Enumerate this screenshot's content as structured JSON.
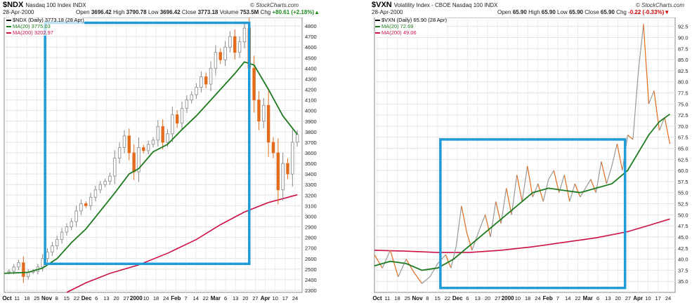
{
  "charts": [
    {
      "symbol": "$NDX",
      "name": "Nasdaq 100 Index",
      "exchange": "INDX",
      "date": "28-Apr-2000",
      "open_label": "Open",
      "open": "3696.42",
      "high_label": "High",
      "high": "3790.78",
      "low_label": "Low",
      "low": "3696.42",
      "close_label": "Close",
      "close": "3773.18",
      "volume_label": "Volume",
      "volume": "753.5M",
      "chg_label": "Chg",
      "chg": "+80.61 (+2.18%)",
      "credit": "© StockCharts.com",
      "legend": [
        {
          "text": "$NDX (Daily) 3773.18 (28 Apr)",
          "color": "#000000"
        },
        {
          "text": "MA(20) 3775.03",
          "color": "#1e7a1e"
        },
        {
          "text": "MA(200) 3202.97",
          "color": "#cc1144"
        }
      ]
    },
    {
      "symbol": "$VXN",
      "name": "Volatility Index - CBOE Nasdaq 100",
      "exchange": "INDX",
      "date": "28-Apr-2000",
      "open_label": "Open",
      "open": "65.90",
      "high_label": "High",
      "high": "65.90",
      "low_label": "Low",
      "low": "65.90",
      "close_label": "Close",
      "close": "65.90",
      "chg_label": "Chg",
      "chg": "-0.22 (-0.33%)",
      "credit": "© StockCharts.com",
      "legend": [
        {
          "text": "$VXN (Daily) 65.90 (28 Apr)",
          "color": "#000000"
        },
        {
          "text": "MA(20) 72.69",
          "color": "#1e7a1e"
        },
        {
          "text": "MA(200) 49.06",
          "color": "#cc1144"
        }
      ]
    }
  ],
  "chart_data": [
    {
      "type": "candlestick",
      "title": "$NDX Nasdaq 100 Index",
      "x_labels": [
        "Oct",
        "11",
        "18",
        "25",
        "Nov",
        "8",
        "15",
        "22",
        "Dec",
        "6",
        "13",
        "20",
        "27",
        "2000",
        "10",
        "18",
        "24",
        "Feb",
        "7",
        "14",
        "22",
        "Mar",
        "6",
        "13",
        "20",
        "27",
        "Apr",
        "10",
        "17",
        "24"
      ],
      "bold_x_labels": [
        "Oct",
        "Nov",
        "Dec",
        "2000",
        "Feb",
        "Mar",
        "Apr"
      ],
      "ylim": [
        2280,
        4880
      ],
      "yticks": [
        2300,
        2400,
        2500,
        2600,
        2700,
        2800,
        2900,
        3000,
        3100,
        3200,
        3300,
        3400,
        3500,
        3600,
        3700,
        3800,
        3900,
        4000,
        4100,
        4200,
        4300,
        4400,
        4500,
        4600,
        4700,
        4800
      ],
      "price_series": [
        {
          "x": 0,
          "y": 2470
        },
        {
          "x": 2,
          "y": 2480
        },
        {
          "x": 4,
          "y": 2520
        },
        {
          "x": 6,
          "y": 2560
        },
        {
          "x": 8,
          "y": 2430
        },
        {
          "x": 10,
          "y": 2470
        },
        {
          "x": 12,
          "y": 2480
        },
        {
          "x": 14,
          "y": 2520
        },
        {
          "x": 16,
          "y": 2600
        },
        {
          "x": 18,
          "y": 2660
        },
        {
          "x": 20,
          "y": 2720
        },
        {
          "x": 22,
          "y": 2780
        },
        {
          "x": 24,
          "y": 2850
        },
        {
          "x": 26,
          "y": 2900
        },
        {
          "x": 28,
          "y": 2950
        },
        {
          "x": 30,
          "y": 3050
        },
        {
          "x": 32,
          "y": 3120
        },
        {
          "x": 34,
          "y": 3100
        },
        {
          "x": 36,
          "y": 3180
        },
        {
          "x": 38,
          "y": 3250
        },
        {
          "x": 40,
          "y": 3300
        },
        {
          "x": 42,
          "y": 3330
        },
        {
          "x": 44,
          "y": 3380
        },
        {
          "x": 46,
          "y": 3550
        },
        {
          "x": 48,
          "y": 3650
        },
        {
          "x": 50,
          "y": 3760
        },
        {
          "x": 52,
          "y": 3600
        },
        {
          "x": 54,
          "y": 3420
        },
        {
          "x": 56,
          "y": 3650
        },
        {
          "x": 58,
          "y": 3620
        },
        {
          "x": 60,
          "y": 3680
        },
        {
          "x": 62,
          "y": 3720
        },
        {
          "x": 64,
          "y": 3850
        },
        {
          "x": 66,
          "y": 3700
        },
        {
          "x": 68,
          "y": 3780
        },
        {
          "x": 70,
          "y": 3960
        },
        {
          "x": 72,
          "y": 3880
        },
        {
          "x": 74,
          "y": 4020
        },
        {
          "x": 76,
          "y": 4100
        },
        {
          "x": 78,
          "y": 4150
        },
        {
          "x": 80,
          "y": 4220
        },
        {
          "x": 82,
          "y": 4320
        },
        {
          "x": 84,
          "y": 4250
        },
        {
          "x": 86,
          "y": 4400
        },
        {
          "x": 88,
          "y": 4550
        },
        {
          "x": 90,
          "y": 4480
        },
        {
          "x": 92,
          "y": 4600
        },
        {
          "x": 94,
          "y": 4700
        },
        {
          "x": 96,
          "y": 4550
        },
        {
          "x": 98,
          "y": 4650
        },
        {
          "x": 100,
          "y": 4780
        },
        {
          "x": 102,
          "y": 4400
        },
        {
          "x": 104,
          "y": 4100
        },
        {
          "x": 106,
          "y": 3900
        },
        {
          "x": 108,
          "y": 4050
        },
        {
          "x": 110,
          "y": 3700
        },
        {
          "x": 112,
          "y": 3600
        },
        {
          "x": 114,
          "y": 3250
        },
        {
          "x": 116,
          "y": 3500
        },
        {
          "x": 118,
          "y": 3400
        },
        {
          "x": 120,
          "y": 3700
        },
        {
          "x": 122,
          "y": 3773
        }
      ],
      "ma20": [
        {
          "x": 0,
          "y": 2460
        },
        {
          "x": 10,
          "y": 2470
        },
        {
          "x": 16,
          "y": 2510
        },
        {
          "x": 22,
          "y": 2600
        },
        {
          "x": 28,
          "y": 2750
        },
        {
          "x": 34,
          "y": 2880
        },
        {
          "x": 40,
          "y": 3050
        },
        {
          "x": 46,
          "y": 3220
        },
        {
          "x": 52,
          "y": 3400
        },
        {
          "x": 56,
          "y": 3450
        },
        {
          "x": 62,
          "y": 3610
        },
        {
          "x": 68,
          "y": 3680
        },
        {
          "x": 74,
          "y": 3820
        },
        {
          "x": 80,
          "y": 3950
        },
        {
          "x": 86,
          "y": 4100
        },
        {
          "x": 92,
          "y": 4250
        },
        {
          "x": 96,
          "y": 4350
        },
        {
          "x": 100,
          "y": 4460
        },
        {
          "x": 104,
          "y": 4430
        },
        {
          "x": 110,
          "y": 4200
        },
        {
          "x": 116,
          "y": 3950
        },
        {
          "x": 122,
          "y": 3775
        }
      ],
      "ma200": [
        {
          "x": 26,
          "y": 2280
        },
        {
          "x": 34,
          "y": 2370
        },
        {
          "x": 44,
          "y": 2460
        },
        {
          "x": 56,
          "y": 2540
        },
        {
          "x": 68,
          "y": 2650
        },
        {
          "x": 80,
          "y": 2780
        },
        {
          "x": 90,
          "y": 2920
        },
        {
          "x": 100,
          "y": 3040
        },
        {
          "x": 110,
          "y": 3130
        },
        {
          "x": 122,
          "y": 3203
        }
      ],
      "highlight_box": {
        "x0": 17,
        "x1": 102,
        "y0": 2550,
        "y1": 4830
      }
    },
    {
      "type": "line",
      "title": "$VXN Volatility Index - CBOE Nasdaq 100",
      "x_labels": [
        "Oct",
        "11",
        "18",
        "25",
        "Nov",
        "8",
        "15",
        "22",
        "Dec",
        "6",
        "13",
        "20",
        "27",
        "2000",
        "10",
        "18",
        "24",
        "Feb",
        "7",
        "14",
        "22",
        "Mar",
        "6",
        "13",
        "20",
        "27",
        "Apr",
        "10",
        "17",
        "24"
      ],
      "bold_x_labels": [
        "Oct",
        "Nov",
        "Dec",
        "2000",
        "Feb",
        "Mar",
        "Apr"
      ],
      "ylim": [
        32.5,
        94.5
      ],
      "yticks": [
        35.0,
        37.5,
        40.0,
        42.5,
        45.0,
        47.5,
        50.0,
        52.5,
        55.0,
        57.5,
        60.0,
        62.5,
        65.0,
        67.5,
        70.0,
        72.5,
        75.0,
        77.5,
        80.0,
        82.5,
        85.0,
        87.5,
        90.0,
        92.5
      ],
      "price_series": [
        {
          "x": 0,
          "y": 41
        },
        {
          "x": 3,
          "y": 38
        },
        {
          "x": 6,
          "y": 42
        },
        {
          "x": 9,
          "y": 36
        },
        {
          "x": 12,
          "y": 40
        },
        {
          "x": 15,
          "y": 37
        },
        {
          "x": 18,
          "y": 34.5
        },
        {
          "x": 21,
          "y": 36
        },
        {
          "x": 24,
          "y": 39
        },
        {
          "x": 27,
          "y": 41
        },
        {
          "x": 29,
          "y": 38
        },
        {
          "x": 31,
          "y": 43
        },
        {
          "x": 33,
          "y": 52
        },
        {
          "x": 35,
          "y": 46
        },
        {
          "x": 37,
          "y": 42
        },
        {
          "x": 40,
          "y": 47
        },
        {
          "x": 42,
          "y": 50
        },
        {
          "x": 44,
          "y": 45
        },
        {
          "x": 46,
          "y": 53
        },
        {
          "x": 48,
          "y": 48
        },
        {
          "x": 50,
          "y": 56
        },
        {
          "x": 52,
          "y": 50
        },
        {
          "x": 54,
          "y": 59
        },
        {
          "x": 56,
          "y": 53
        },
        {
          "x": 58,
          "y": 61
        },
        {
          "x": 60,
          "y": 54
        },
        {
          "x": 62,
          "y": 57
        },
        {
          "x": 64,
          "y": 53
        },
        {
          "x": 66,
          "y": 58
        },
        {
          "x": 68,
          "y": 60
        },
        {
          "x": 70,
          "y": 55
        },
        {
          "x": 72,
          "y": 59
        },
        {
          "x": 74,
          "y": 53
        },
        {
          "x": 76,
          "y": 57
        },
        {
          "x": 78,
          "y": 54
        },
        {
          "x": 80,
          "y": 56
        },
        {
          "x": 82,
          "y": 58
        },
        {
          "x": 84,
          "y": 55
        },
        {
          "x": 86,
          "y": 62
        },
        {
          "x": 88,
          "y": 57
        },
        {
          "x": 90,
          "y": 61
        },
        {
          "x": 92,
          "y": 66
        },
        {
          "x": 94,
          "y": 60
        },
        {
          "x": 96,
          "y": 68
        },
        {
          "x": 98,
          "y": 67
        },
        {
          "x": 100,
          "y": 82
        },
        {
          "x": 102,
          "y": 93
        },
        {
          "x": 104,
          "y": 75
        },
        {
          "x": 106,
          "y": 78
        },
        {
          "x": 108,
          "y": 69
        },
        {
          "x": 110,
          "y": 72
        },
        {
          "x": 112,
          "y": 66
        }
      ],
      "ma20": [
        {
          "x": 0,
          "y": 38.5
        },
        {
          "x": 6,
          "y": 39.5
        },
        {
          "x": 12,
          "y": 39
        },
        {
          "x": 18,
          "y": 37.5
        },
        {
          "x": 24,
          "y": 38
        },
        {
          "x": 30,
          "y": 40
        },
        {
          "x": 36,
          "y": 43
        },
        {
          "x": 42,
          "y": 46
        },
        {
          "x": 48,
          "y": 49
        },
        {
          "x": 54,
          "y": 52
        },
        {
          "x": 60,
          "y": 55
        },
        {
          "x": 66,
          "y": 56
        },
        {
          "x": 72,
          "y": 55.5
        },
        {
          "x": 78,
          "y": 55
        },
        {
          "x": 84,
          "y": 56
        },
        {
          "x": 90,
          "y": 57
        },
        {
          "x": 96,
          "y": 60
        },
        {
          "x": 100,
          "y": 64
        },
        {
          "x": 104,
          "y": 68
        },
        {
          "x": 108,
          "y": 71
        },
        {
          "x": 112,
          "y": 72.7
        }
      ],
      "ma200": [
        {
          "x": 0,
          "y": 42
        },
        {
          "x": 12,
          "y": 41.8
        },
        {
          "x": 24,
          "y": 41.5
        },
        {
          "x": 36,
          "y": 41.5
        },
        {
          "x": 48,
          "y": 42
        },
        {
          "x": 60,
          "y": 42.8
        },
        {
          "x": 72,
          "y": 43.8
        },
        {
          "x": 84,
          "y": 44.8
        },
        {
          "x": 96,
          "y": 46.2
        },
        {
          "x": 104,
          "y": 47.6
        },
        {
          "x": 112,
          "y": 49.06
        }
      ],
      "highlight_box": {
        "x0": 25,
        "x1": 95,
        "y0": 33.5,
        "y1": 67
      }
    }
  ]
}
